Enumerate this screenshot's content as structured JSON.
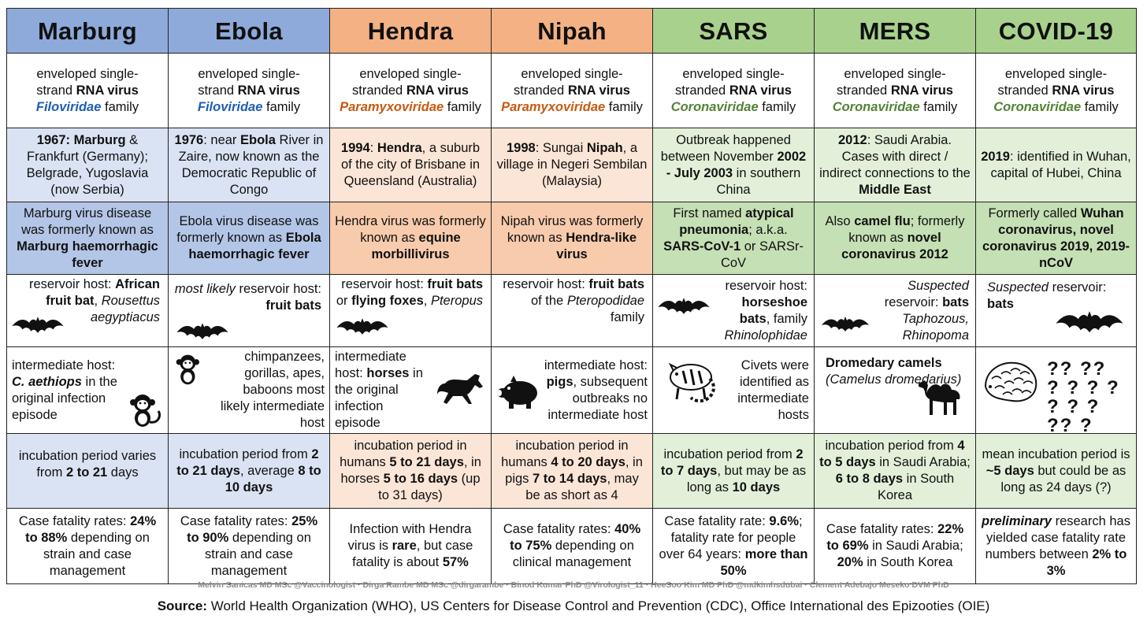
{
  "headers": [
    "Marburg",
    "Ebola",
    "Hendra",
    "Nipah",
    "SARS",
    "MERS",
    "COVID-19"
  ],
  "family": [
    {
      "l1": "enveloped single-",
      "l2a": "strand ",
      "l2b": "RNA virus",
      "fam": "Filoviridae",
      "fam_suffix": " family"
    },
    {
      "l1": "enveloped single-",
      "l2a": "strand ",
      "l2b": "RNA virus",
      "fam": "Filoviridae",
      "fam_suffix": " family"
    },
    {
      "l1": "enveloped single-",
      "l2a": "stranded ",
      "l2b": "RNA virus",
      "fam": "Paramyxoviridae",
      "fam_suffix": " family"
    },
    {
      "l1": "enveloped single-",
      "l2a": "stranded ",
      "l2b": "RNA virus",
      "fam": "Paramyxoviridae",
      "fam_suffix": " family"
    },
    {
      "l1": "enveloped single-",
      "l2a": "stranded ",
      "l2b": "RNA virus",
      "fam": "Coronaviridae",
      "fam_suffix": " family"
    },
    {
      "l1": "enveloped single-",
      "l2a": "stranded ",
      "l2b": "RNA virus",
      "fam": "Coronaviridae",
      "fam_suffix": " family"
    },
    {
      "l1": "enveloped single-",
      "l2a": "stranded ",
      "l2b": "RNA virus",
      "fam": "Coronaviridae",
      "fam_suffix": " family"
    }
  ],
  "origin": {
    "marburg": {
      "a": "1967: Marburg",
      "b": " & Frankfurt (Germany); Belgrade, Yugoslavia (now Serbia)"
    },
    "ebola": {
      "a": "1976",
      "b": ": near ",
      "c": "Ebola",
      "d": " River in Zaire, now known as the Democratic Republic of Congo"
    },
    "hendra": {
      "a": "1994",
      "b": ": ",
      "c": "Hendra",
      "d": ", a suburb of the city of Brisbane in Queensland (Australia)"
    },
    "nipah": {
      "a": "1998",
      "b": ": Sungai ",
      "c": "Nipah",
      "d": ", a village in Negeri Sembilan (Malaysia)"
    },
    "sars": {
      "a": "Outbreak happened between November ",
      "b": "2002 - July 2003",
      "c": " in southern China"
    },
    "mers": {
      "a": "2012",
      "b": ": Saudi Arabia. Cases with direct / indirect connections to the ",
      "c": "Middle East"
    },
    "covid": {
      "a": "2019",
      "b": ": identified in Wuhan, capital of Hubei, China"
    }
  },
  "names": {
    "marburg": {
      "a": "Marburg virus disease was formerly known as ",
      "b": "Marburg haemorrhagic fever"
    },
    "ebola": {
      "a": "Ebola virus disease was formerly known as ",
      "b": "Ebola haemorrhagic fever"
    },
    "hendra": {
      "a": "Hendra virus was formerly known as ",
      "b": "equine morbillivirus"
    },
    "nipah": {
      "a": "Nipah virus was formerly known as ",
      "b": "Hendra-like virus"
    },
    "sars": {
      "a": "First named ",
      "b": "atypical pneumonia",
      "c": "; a.k.a. ",
      "d": "SARS-CoV-1",
      "e": " or SARSr-CoV"
    },
    "mers": {
      "a": "Also ",
      "b": "camel flu",
      "c": "; formerly known as ",
      "d": "novel coronavirus 2012"
    },
    "covid": {
      "a": "Formerly called ",
      "b": "Wuhan coronavirus, novel coronavirus 2019, 2019-nCoV"
    }
  },
  "reservoir": {
    "marburg": {
      "a": "reservoir host: ",
      "b": "African fruit bat",
      "c": ", ",
      "d": "Rousettus aegyptiacus"
    },
    "ebola": {
      "a": "most likely",
      "b": " reservoir host: ",
      "c": "fruit bats"
    },
    "hendra": {
      "a": "reservoir host: ",
      "b": "fruit bats",
      "c": " or ",
      "d": "flying foxes",
      "e": ", ",
      "f": "Pteropus"
    },
    "nipah": {
      "a": "reservoir host: ",
      "b": "fruit bats",
      "c": " of the ",
      "d": "Pteropodidae",
      "e": " family"
    },
    "sars": {
      "a": "reservoir host: ",
      "b": "horseshoe bats",
      "c": ", family ",
      "d": "Rhinolophidae"
    },
    "mers": {
      "a": "Suspected",
      "b": " reservoir: ",
      "c": "bats",
      "d": " Taphozous, Rhinopoma"
    },
    "covid": {
      "a": "Suspected",
      "b": " reservoir: ",
      "c": "bats"
    }
  },
  "intermediate": {
    "marburg": {
      "a": "intermediate host: ",
      "b": "C. aethiops",
      "c": " in the original infection episode"
    },
    "ebola": {
      "a": "chimpanzees, gorillas, apes, baboons most likely intermediate host"
    },
    "hendra": {
      "a": "intermediate host: ",
      "b": "horses",
      "c": " in the original infection episode"
    },
    "nipah": {
      "a": "intermediate host: ",
      "b": "pigs",
      "c": ", subsequent outbreaks no intermediate host"
    },
    "sars": {
      "a": "Civets were identified as intermediate hosts"
    },
    "mers": {
      "a": "Dromedary camels",
      "b": "(Camelus dromedarius)"
    },
    "covid": {
      "q": "?? ?? ? ? ? ? ? ? ? ?? ?"
    }
  },
  "incubation": {
    "marburg": {
      "a": "incubation period varies from ",
      "b": "2 to 21",
      "c": " days"
    },
    "ebola": {
      "a": "incubation period from ",
      "b": "2 to 21 days",
      "c": ", average ",
      "d": "8 to 10 days"
    },
    "hendra": {
      "a": "incubation period in humans ",
      "b": "5 to 21 days",
      "c": ", in horses ",
      "d": "5 to 16 days",
      "e": " (up to 31 days)"
    },
    "nipah": {
      "a": "incubation period in humans ",
      "b": "4 to 20 days",
      "c": ", in pigs ",
      "d": "7 to 14 days",
      "e": ", may be as short as 4"
    },
    "sars": {
      "a": "incubation period from ",
      "b": "2 to 7 days",
      "c": ", but may be as long as ",
      "d": "10 days"
    },
    "mers": {
      "a": "incubation period from ",
      "b": "4 to 5 days",
      "c": " in Saudi Arabia; ",
      "d": "6 to 8 days",
      "e": " in South Korea"
    },
    "covid": {
      "a": "mean incubation period is ",
      "b": "~5 days",
      "c": " but could be as long as 24 days (?)"
    }
  },
  "fatality": {
    "marburg": {
      "a": "Case fatality rates: ",
      "b": "24% to 88%",
      "c": " depending on strain and case management"
    },
    "ebola": {
      "a": "Case fatality rates: ",
      "b": "25% to 90%",
      "c": " depending on strain and case management"
    },
    "hendra": {
      "a": "Infection with Hendra virus is ",
      "b": "rare",
      "c": ", but case fatality is about ",
      "d": "57%"
    },
    "nipah": {
      "a": "Case fatality rates: ",
      "b": "40% to 75%",
      "c": " depending on clinical management"
    },
    "sars": {
      "a": "Case fatality rate: ",
      "b": "9.6%",
      "c": "; fatality rate for people over 64 years: ",
      "d": "more than 50%"
    },
    "mers": {
      "a": "Case fatality rates: ",
      "b": "22% to 69%",
      "c": " in Saudi Arabia; ",
      "d": "20%",
      "e": " in South Korea"
    },
    "covid": {
      "a": "preliminary",
      "b": " research has yielded case fatality rate numbers between ",
      "c": "2% to 3%"
    }
  },
  "credits": "Melvin Sanicas MD MSc @Vaccinologist  ·  Dirga Rambe MD MSc @dirgarambe  ·  Binod Kumar PhD @Virologist_11  ·  HeeSoo Kim MD PhD @mdkimhsdubai  ·  Clement Adebajo Meseko DVM PhD",
  "source": {
    "label": "Source:",
    "text": " World Health Organization (WHO), US Centers for Disease Control and Prevention (CDC), Office International des Epizooties (OIE)"
  },
  "colors": {
    "blue_header": "#8eaadb",
    "orange_header": "#f4b183",
    "green_header": "#a9d18e",
    "filoviridae": "#1f5fb0",
    "paramyxoviridae": "#c55a11",
    "coronaviridae": "#548235"
  },
  "icons": [
    "bat-icon",
    "monkey-icon",
    "horse-icon",
    "pig-icon",
    "civet-icon",
    "camel-icon",
    "pangolin-icon",
    "question-marks-icon"
  ]
}
